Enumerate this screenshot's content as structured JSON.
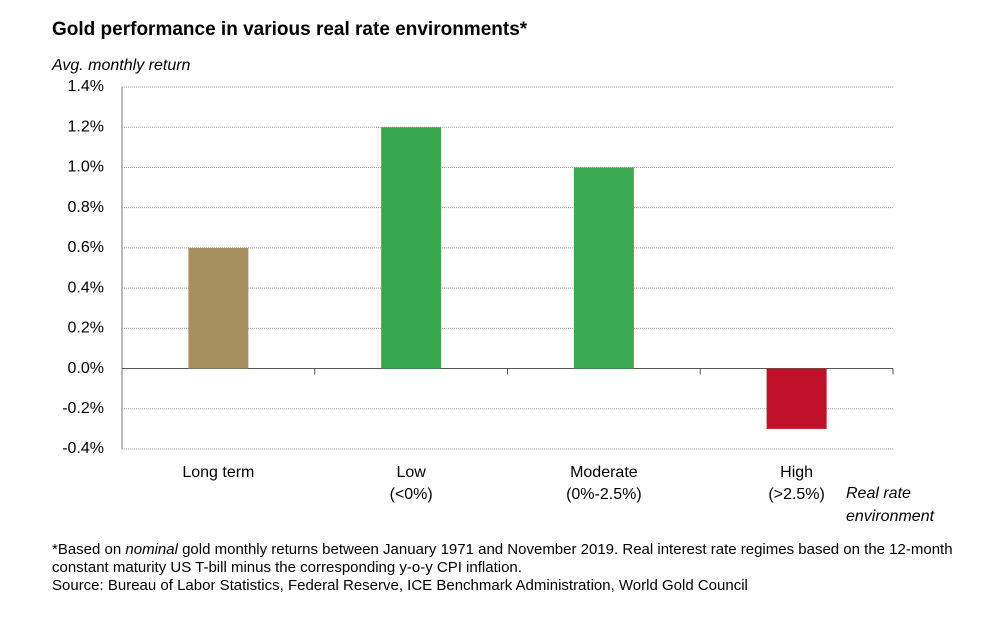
{
  "chart_data": {
    "type": "bar",
    "title": "Gold performance in various real rate environments*",
    "y_label": "Avg. monthly return",
    "x_label": [
      "Real rate",
      "environment"
    ],
    "categories": [
      [
        "Long term"
      ],
      [
        "Low",
        "(<0%)"
      ],
      [
        "Moderate",
        "(0%-2.5%)"
      ],
      [
        "High",
        "(>2.5%)"
      ]
    ],
    "values": [
      0.6,
      1.2,
      1.0,
      -0.3
    ],
    "colors": [
      "#a69060",
      "#38a84f",
      "#3aa951",
      "#c0112a"
    ],
    "ylim": [
      -0.4,
      1.4
    ],
    "yticks": [
      {
        "value": -0.4,
        "label": "-0.4%"
      },
      {
        "value": -0.2,
        "label": "-0.2%"
      },
      {
        "value": 0,
        "label": "0.0%"
      },
      {
        "value": 0.2,
        "label": "0.2%"
      },
      {
        "value": 0.4,
        "label": "0.4%"
      },
      {
        "value": 0.6,
        "label": "0.6%"
      },
      {
        "value": 0.8,
        "label": "0.8%"
      },
      {
        "value": 1.0,
        "label": "1.0%"
      },
      {
        "value": 1.2,
        "label": "1.2%"
      },
      {
        "value": 1.4,
        "label": "1.4%"
      }
    ],
    "grid": true,
    "footnote": [
      "*Based on ",
      "nominal",
      " gold monthly returns between January 1971 and November 2019. Real interest rate regimes based on the 12-month constant maturity US T-bill minus the corresponding y-o-y CPI inflation."
    ],
    "source": "Source: Bureau of Labor Statistics, Federal Reserve, ICE Benchmark Administration, World Gold Council"
  }
}
